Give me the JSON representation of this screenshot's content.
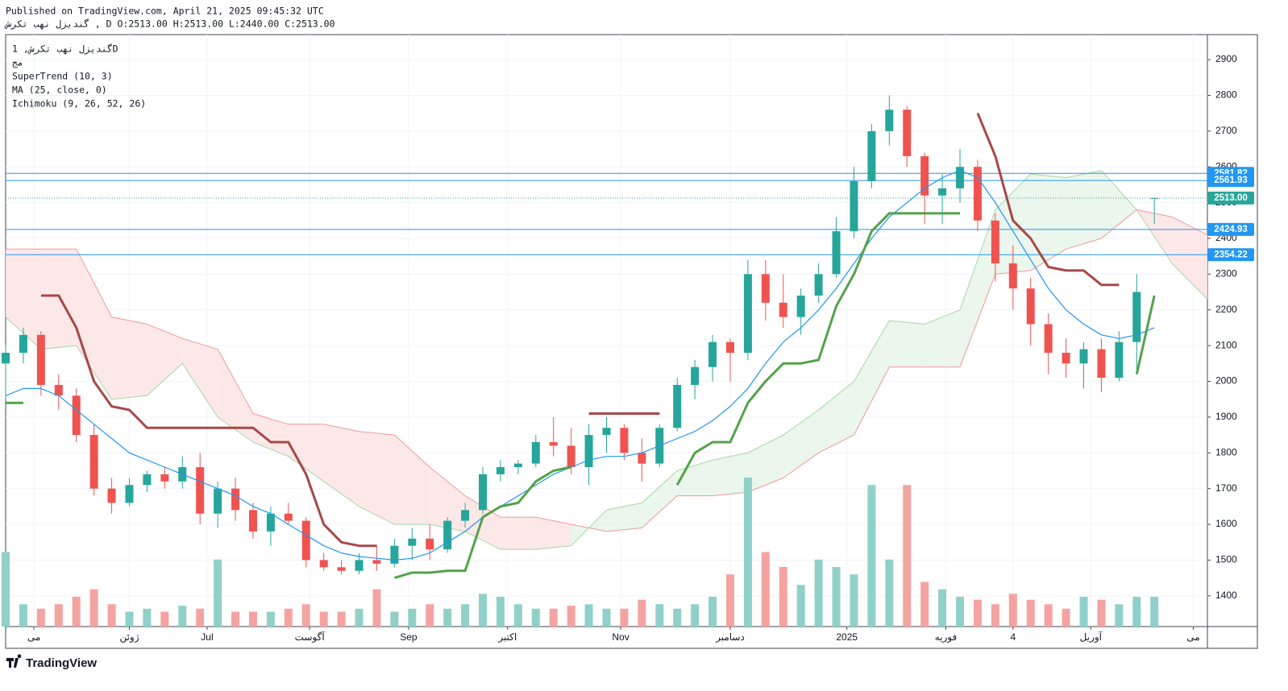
{
  "chart_data": {
    "type": "candlestick",
    "title": "گندیزل نهب تکرش, 1D",
    "header": [
      "Published on TradingView.com, April 21, 2025 09:45:32 UTC",
      "گندیزل نهب تکرش , D O:2513.00 H:2513.00 L:2440.00 C:2513.00"
    ],
    "legend": [
      "مج",
      "SuperTrend (10, 3)",
      "MA (25, close, 0)",
      "Ichimoku (9, 26, 52, 26)"
    ],
    "brand": "TradingView",
    "up_color": "#26a69a",
    "down_color": "#ef5350",
    "volume_up_color": "#8fd1c9",
    "volume_down_color": "#f5a3a1",
    "x": [
      0,
      5,
      10,
      15,
      20,
      25,
      30,
      35,
      40,
      45,
      50,
      55,
      60,
      65,
      70,
      75,
      80,
      85,
      90,
      95,
      100,
      105,
      110,
      115,
      120,
      125,
      130,
      135,
      140,
      145,
      150,
      155,
      160,
      165,
      170,
      175,
      180,
      185,
      190,
      195,
      200,
      205,
      210,
      215,
      220,
      225,
      230,
      235,
      240,
      245,
      250,
      255,
      260,
      265,
      270,
      275,
      280,
      285,
      290,
      295,
      300,
      305,
      310,
      315,
      320,
      325
    ],
    "ohlc": [
      [
        2050,
        2100,
        1950,
        2080
      ],
      [
        2080,
        2150,
        2050,
        2130
      ],
      [
        2130,
        2140,
        1960,
        1990
      ],
      [
        1990,
        2020,
        1920,
        1960
      ],
      [
        1960,
        1980,
        1830,
        1850
      ],
      [
        1850,
        1880,
        1680,
        1700
      ],
      [
        1700,
        1730,
        1630,
        1660
      ],
      [
        1660,
        1730,
        1650,
        1710
      ],
      [
        1710,
        1750,
        1690,
        1740
      ],
      [
        1740,
        1760,
        1700,
        1720
      ],
      [
        1720,
        1790,
        1700,
        1760
      ],
      [
        1760,
        1800,
        1600,
        1630
      ],
      [
        1630,
        1720,
        1590,
        1700
      ],
      [
        1700,
        1730,
        1610,
        1640
      ],
      [
        1640,
        1660,
        1560,
        1580
      ],
      [
        1580,
        1650,
        1540,
        1630
      ],
      [
        1630,
        1660,
        1600,
        1610
      ],
      [
        1610,
        1620,
        1480,
        1500
      ],
      [
        1500,
        1520,
        1470,
        1480
      ],
      [
        1480,
        1500,
        1460,
        1470
      ],
      [
        1470,
        1520,
        1460,
        1500
      ],
      [
        1500,
        1540,
        1470,
        1490
      ],
      [
        1490,
        1560,
        1480,
        1540
      ],
      [
        1540,
        1590,
        1500,
        1560
      ],
      [
        1560,
        1600,
        1500,
        1530
      ],
      [
        1530,
        1620,
        1520,
        1610
      ],
      [
        1610,
        1660,
        1590,
        1640
      ],
      [
        1640,
        1760,
        1630,
        1740
      ],
      [
        1740,
        1780,
        1720,
        1760
      ],
      [
        1760,
        1780,
        1740,
        1770
      ],
      [
        1770,
        1850,
        1760,
        1830
      ],
      [
        1830,
        1900,
        1790,
        1820
      ],
      [
        1820,
        1870,
        1740,
        1760
      ],
      [
        1760,
        1880,
        1710,
        1850
      ],
      [
        1850,
        1900,
        1800,
        1870
      ],
      [
        1870,
        1880,
        1780,
        1800
      ],
      [
        1800,
        1840,
        1720,
        1770
      ],
      [
        1770,
        1880,
        1760,
        1870
      ],
      [
        1870,
        2010,
        1860,
        1990
      ],
      [
        1990,
        2060,
        1950,
        2040
      ],
      [
        2040,
        2130,
        2000,
        2110
      ],
      [
        2110,
        2120,
        2000,
        2080
      ],
      [
        2080,
        2340,
        2060,
        2300
      ],
      [
        2300,
        2340,
        2170,
        2220
      ],
      [
        2220,
        2300,
        2150,
        2180
      ],
      [
        2180,
        2260,
        2130,
        2240
      ],
      [
        2240,
        2330,
        2220,
        2300
      ],
      [
        2300,
        2460,
        2290,
        2420
      ],
      [
        2420,
        2600,
        2400,
        2560
      ],
      [
        2560,
        2720,
        2540,
        2700
      ],
      [
        2700,
        2800,
        2660,
        2760
      ],
      [
        2760,
        2770,
        2600,
        2630
      ],
      [
        2630,
        2640,
        2440,
        2520
      ],
      [
        2520,
        2580,
        2440,
        2540
      ],
      [
        2540,
        2650,
        2500,
        2600
      ],
      [
        2600,
        2620,
        2420,
        2450
      ],
      [
        2450,
        2470,
        2280,
        2330
      ],
      [
        2330,
        2380,
        2200,
        2260
      ],
      [
        2260,
        2290,
        2100,
        2160
      ],
      [
        2160,
        2190,
        2020,
        2080
      ],
      [
        2080,
        2120,
        2010,
        2050
      ],
      [
        2050,
        2110,
        1980,
        2090
      ],
      [
        2090,
        2120,
        1970,
        2010
      ],
      [
        2010,
        2140,
        2000,
        2110
      ],
      [
        2110,
        2300,
        2020,
        2250
      ],
      [
        2513,
        2513,
        2440,
        2513
      ]
    ],
    "volume": [
      50,
      15,
      12,
      15,
      20,
      25,
      15,
      10,
      12,
      10,
      14,
      12,
      45,
      10,
      10,
      10,
      12,
      15,
      10,
      10,
      12,
      25,
      10,
      12,
      15,
      12,
      15,
      22,
      20,
      15,
      12,
      12,
      14,
      15,
      12,
      12,
      18,
      15,
      12,
      15,
      20,
      35,
      100,
      50,
      40,
      28,
      45,
      40,
      35,
      95,
      45,
      95,
      30,
      25,
      20,
      18,
      15,
      22,
      18,
      15,
      12,
      20,
      18,
      15,
      20,
      20
    ],
    "supertrend": {
      "up_color": "#53a24a",
      "down_color": "#a84848",
      "up": [
        1940,
        1940,
        null,
        null,
        null,
        null,
        null,
        null,
        null,
        null,
        null,
        null,
        null,
        null,
        null,
        null,
        null,
        null,
        null,
        null,
        null,
        null,
        1450,
        1465,
        1465,
        1470,
        1470,
        1620,
        1650,
        1660,
        1720,
        1750,
        1760,
        null,
        null,
        null,
        null,
        null,
        1710,
        1800,
        1830,
        1830,
        1940,
        2000,
        2050,
        2050,
        2060,
        2210,
        2300,
        2420,
        2470,
        2470,
        2470,
        2470,
        2470,
        null,
        null,
        null,
        null,
        null,
        null,
        null,
        null,
        null,
        2020,
        2240
      ],
      "down": [
        null,
        null,
        2240,
        2240,
        2150,
        2000,
        1930,
        1920,
        1870,
        1870,
        1870,
        1870,
        1870,
        1870,
        1870,
        1830,
        1830,
        1740,
        1600,
        1550,
        1540,
        1540,
        null,
        null,
        null,
        null,
        null,
        null,
        null,
        null,
        null,
        null,
        null,
        1910,
        1910,
        1910,
        1910,
        1910,
        null,
        null,
        null,
        null,
        null,
        null,
        null,
        null,
        null,
        null,
        null,
        null,
        null,
        null,
        null,
        null,
        null,
        2750,
        2630,
        2450,
        2400,
        2320,
        2310,
        2310,
        2270,
        2270,
        null,
        null
      ]
    },
    "ma": {
      "color": "#2196f3",
      "values": [
        1960,
        1980,
        1980,
        1960,
        1920,
        1880,
        1840,
        1800,
        1780,
        1760,
        1740,
        1720,
        1700,
        1680,
        1650,
        1630,
        1600,
        1570,
        1540,
        1520,
        1510,
        1505,
        1500,
        1505,
        1520,
        1550,
        1580,
        1620,
        1650,
        1680,
        1710,
        1740,
        1760,
        1780,
        1790,
        1790,
        1800,
        1820,
        1840,
        1860,
        1890,
        1930,
        1980,
        2050,
        2110,
        2150,
        2200,
        2260,
        2330,
        2400,
        2460,
        2500,
        2540,
        2570,
        2590,
        2570,
        2500,
        2420,
        2340,
        2260,
        2200,
        2160,
        2130,
        2120,
        2130,
        2150
      ]
    },
    "ichimoku": {
      "a_color": "#a5d6a7",
      "b_color": "#ef9a9a",
      "a_fill": "#e8f5e9",
      "b_fill": "#fde4e4",
      "x": [
        0,
        10,
        20,
        30,
        40,
        50,
        60,
        70,
        80,
        90,
        100,
        110,
        120,
        130,
        140,
        150,
        160,
        170,
        180,
        190,
        200,
        210,
        220,
        230,
        240,
        250,
        260,
        270,
        280,
        290,
        300,
        310,
        320,
        330,
        340
      ],
      "span_a": [
        2180,
        2090,
        2100,
        1950,
        1960,
        2050,
        1900,
        1830,
        1790,
        1720,
        1650,
        1600,
        1600,
        1580,
        1530,
        1530,
        1540,
        1640,
        1660,
        1750,
        1780,
        1800,
        1850,
        1920,
        2000,
        2170,
        2160,
        2200,
        2480,
        2580,
        2570,
        2590,
        2480,
        2330,
        2230
      ],
      "span_b": [
        2370,
        2370,
        2370,
        2180,
        2160,
        2120,
        2090,
        1910,
        1880,
        1880,
        1860,
        1850,
        1760,
        1680,
        1620,
        1620,
        1600,
        1580,
        1590,
        1680,
        1680,
        1690,
        1730,
        1800,
        1850,
        2040,
        2040,
        2040,
        2300,
        2310,
        2370,
        2400,
        2480,
        2460,
        2410
      ]
    },
    "levels": [
      {
        "value": 2581.82,
        "label": "2581.82",
        "color": "#2196f3",
        "dotted": false
      },
      {
        "value": 2561.93,
        "label": "2561.93",
        "color": "#2196f3",
        "dotted": false
      },
      {
        "value": 2513,
        "label": "2513.00",
        "color": "#26a69a",
        "dotted": true
      },
      {
        "value": 2424.93,
        "label": "2424.93",
        "color": "#2196f3",
        "dotted": false
      },
      {
        "value": 2354.22,
        "label": "2354.22",
        "color": "#2196f3",
        "dotted": false
      }
    ],
    "xlim": [
      0,
      340
    ],
    "ylim": [
      1314,
      2970
    ],
    "xticks": [
      {
        "value": 8,
        "label": "مى"
      },
      {
        "value": 35,
        "label": "ژوئن"
      },
      {
        "value": 57,
        "label": "Jul"
      },
      {
        "value": 86,
        "label": "آگوست"
      },
      {
        "value": 114,
        "label": "Sep"
      },
      {
        "value": 142,
        "label": "اکتبر"
      },
      {
        "value": 174,
        "label": "Nov"
      },
      {
        "value": 205,
        "label": "دسامبر"
      },
      {
        "value": 238,
        "label": "2025"
      },
      {
        "value": 266,
        "label": "فوریه"
      },
      {
        "value": 285,
        "label": "4"
      },
      {
        "value": 307,
        "label": "آوریل"
      },
      {
        "value": 336,
        "label": "مى"
      }
    ],
    "yticks": [
      1400,
      1500,
      1600,
      1700,
      1800,
      1900,
      2000,
      2100,
      2200,
      2300,
      2400,
      2500,
      2600,
      2700,
      2800,
      2900
    ],
    "grid": true
  }
}
